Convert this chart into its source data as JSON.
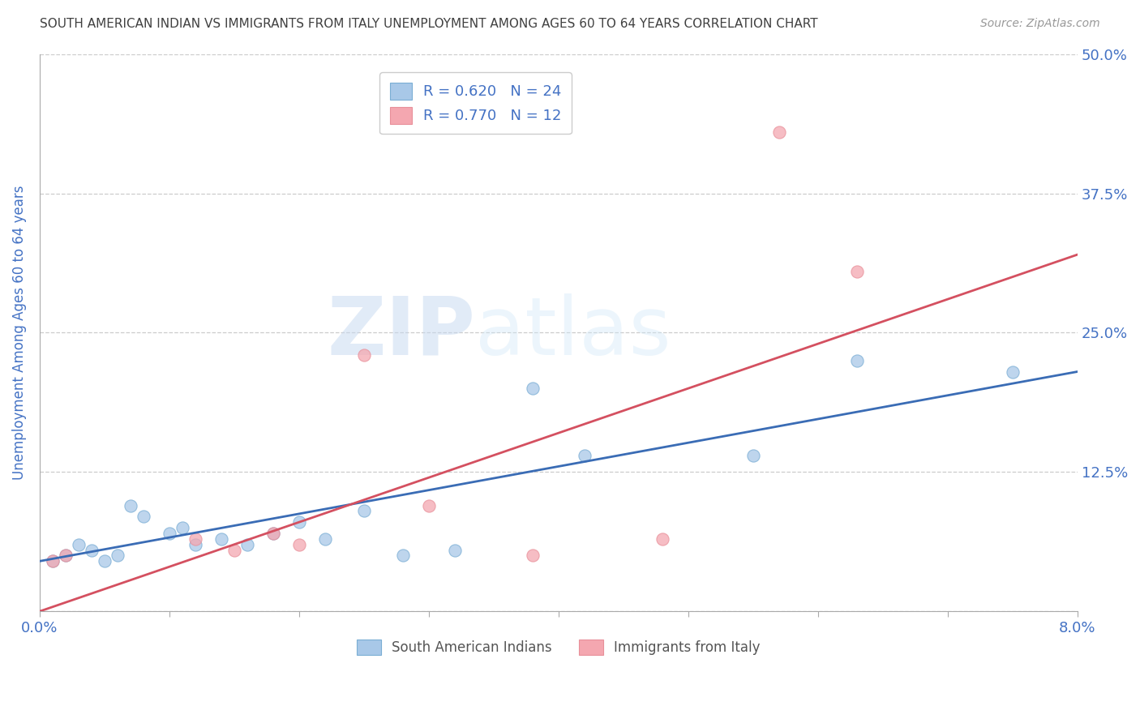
{
  "title": "SOUTH AMERICAN INDIAN VS IMMIGRANTS FROM ITALY UNEMPLOYMENT AMONG AGES 60 TO 64 YEARS CORRELATION CHART",
  "source": "Source: ZipAtlas.com",
  "ylabel": "Unemployment Among Ages 60 to 64 years",
  "xlim": [
    0.0,
    0.08
  ],
  "ylim": [
    0.0,
    0.5
  ],
  "yticks": [
    0.0,
    0.125,
    0.25,
    0.375,
    0.5
  ],
  "ytick_labels": [
    "",
    "12.5%",
    "25.0%",
    "37.5%",
    "50.0%"
  ],
  "xticks": [
    0.0,
    0.01,
    0.02,
    0.03,
    0.04,
    0.05,
    0.06,
    0.07,
    0.08
  ],
  "xtick_labels": [
    "0.0%",
    "",
    "",
    "",
    "",
    "",
    "",
    "",
    "8.0%"
  ],
  "blue_label": "South American Indians",
  "pink_label": "Immigrants from Italy",
  "blue_R": "R = 0.620",
  "blue_N": "N = 24",
  "pink_R": "R = 0.770",
  "pink_N": "N = 12",
  "blue_color": "#a8c8e8",
  "pink_color": "#f4a7b0",
  "blue_edge_color": "#7aaed4",
  "pink_edge_color": "#e8909a",
  "blue_line_color": "#3a6cb5",
  "pink_line_color": "#d45060",
  "axis_label_color": "#4472c4",
  "title_color": "#404040",
  "watermark_zip": "ZIP",
  "watermark_atlas": "atlas",
  "blue_x": [
    0.001,
    0.002,
    0.003,
    0.004,
    0.005,
    0.006,
    0.007,
    0.008,
    0.01,
    0.011,
    0.012,
    0.014,
    0.016,
    0.018,
    0.02,
    0.022,
    0.025,
    0.028,
    0.032,
    0.038,
    0.042,
    0.055,
    0.063,
    0.075
  ],
  "blue_y": [
    0.045,
    0.05,
    0.06,
    0.055,
    0.045,
    0.05,
    0.095,
    0.085,
    0.07,
    0.075,
    0.06,
    0.065,
    0.06,
    0.07,
    0.08,
    0.065,
    0.09,
    0.05,
    0.055,
    0.2,
    0.14,
    0.14,
    0.225,
    0.215
  ],
  "pink_x": [
    0.001,
    0.002,
    0.012,
    0.015,
    0.018,
    0.02,
    0.025,
    0.03,
    0.038,
    0.048,
    0.057,
    0.063
  ],
  "pink_y": [
    0.045,
    0.05,
    0.065,
    0.055,
    0.07,
    0.06,
    0.23,
    0.095,
    0.05,
    0.065,
    0.43,
    0.305
  ],
  "blue_trend_x": [
    0.0,
    0.08
  ],
  "blue_trend_y": [
    0.045,
    0.215
  ],
  "pink_trend_x": [
    0.0,
    0.08
  ],
  "pink_trend_y": [
    0.0,
    0.32
  ],
  "marker_size": 120,
  "legend_loc": "upper center"
}
